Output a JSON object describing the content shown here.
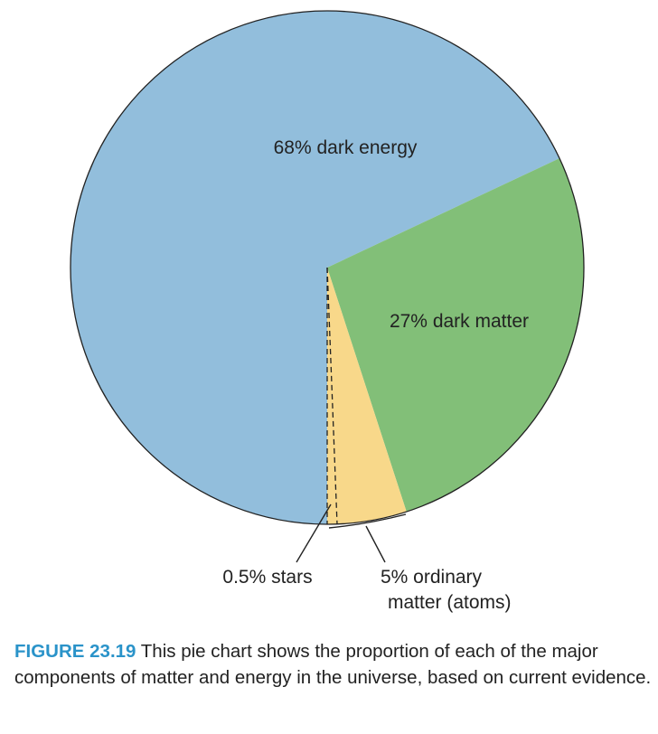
{
  "chart_data": {
    "type": "pie",
    "slices": [
      {
        "label": "68% dark energy",
        "value": 68,
        "color": "#92bedc"
      },
      {
        "label": "27% dark matter",
        "value": 27,
        "color": "#82bf78"
      },
      {
        "label": "5% ordinary matter (atoms)",
        "value": 5,
        "color": "#f8d88a"
      }
    ],
    "sub_slice": {
      "label": "0.5% stars",
      "value": 0.5,
      "within": "5% ordinary matter (atoms)"
    },
    "labels": {
      "dark_energy": "68% dark energy",
      "dark_matter": "27% dark matter",
      "stars": "0.5% stars",
      "ordinary_line1": "5% ordinary",
      "ordinary_line2": "matter (atoms)"
    }
  },
  "caption": {
    "figure_number": "FIGURE 23.19",
    "text": " This pie chart shows the proportion of each of the major components of matter and energy in the universe, based on current evidence."
  }
}
